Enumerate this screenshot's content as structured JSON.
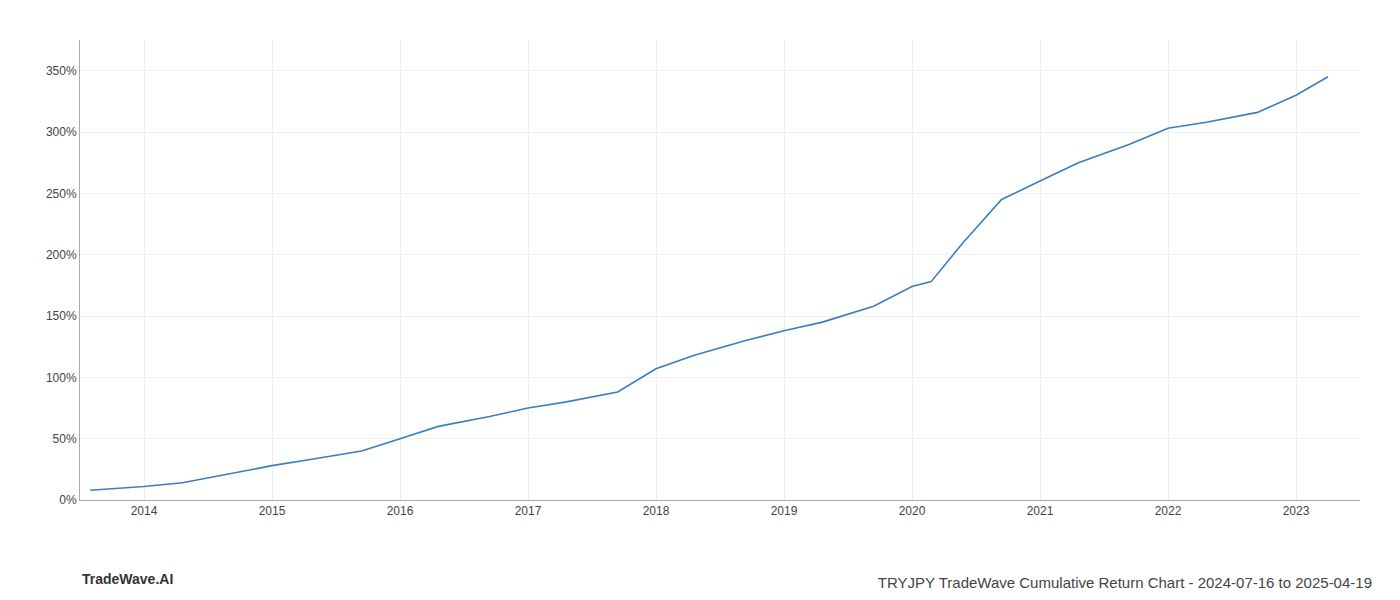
{
  "chart_data": {
    "type": "line",
    "title": "TRYJPY TradeWave Cumulative Return Chart - 2024-07-16 to 2025-04-19",
    "annotations": [
      "TradeWave.AI"
    ],
    "x": [
      2013.58,
      2014.0,
      2014.3,
      2014.7,
      2015.0,
      2015.3,
      2015.7,
      2016.0,
      2016.3,
      2016.7,
      2017.0,
      2017.3,
      2017.7,
      2018.0,
      2018.3,
      2018.7,
      2019.0,
      2019.3,
      2019.7,
      2020.0,
      2020.15,
      2020.4,
      2020.7,
      2021.0,
      2021.3,
      2021.7,
      2022.0,
      2022.3,
      2022.7,
      2023.0,
      2023.25
    ],
    "values": [
      8,
      11,
      14,
      22,
      28,
      33,
      40,
      50,
      60,
      68,
      75,
      80,
      88,
      107,
      118,
      130,
      138,
      145,
      158,
      174,
      178,
      210,
      245,
      260,
      275,
      290,
      303,
      308,
      316,
      330,
      345
    ],
    "color": "#3a7ebf",
    "xlim": [
      2013.5,
      2023.5
    ],
    "xticks": [
      2014,
      2015,
      2016,
      2017,
      2018,
      2019,
      2020,
      2021,
      2022,
      2023
    ],
    "ylim": [
      0,
      375
    ],
    "yticks": [
      {
        "value": 0,
        "label": "0%"
      },
      {
        "value": 50,
        "label": "50%"
      },
      {
        "value": 100,
        "label": "100%"
      },
      {
        "value": 150,
        "label": "150%"
      },
      {
        "value": 200,
        "label": "200%"
      },
      {
        "value": 250,
        "label": "250%"
      },
      {
        "value": 300,
        "label": "300%"
      },
      {
        "value": 350,
        "label": "350%"
      }
    ],
    "grid": true
  }
}
